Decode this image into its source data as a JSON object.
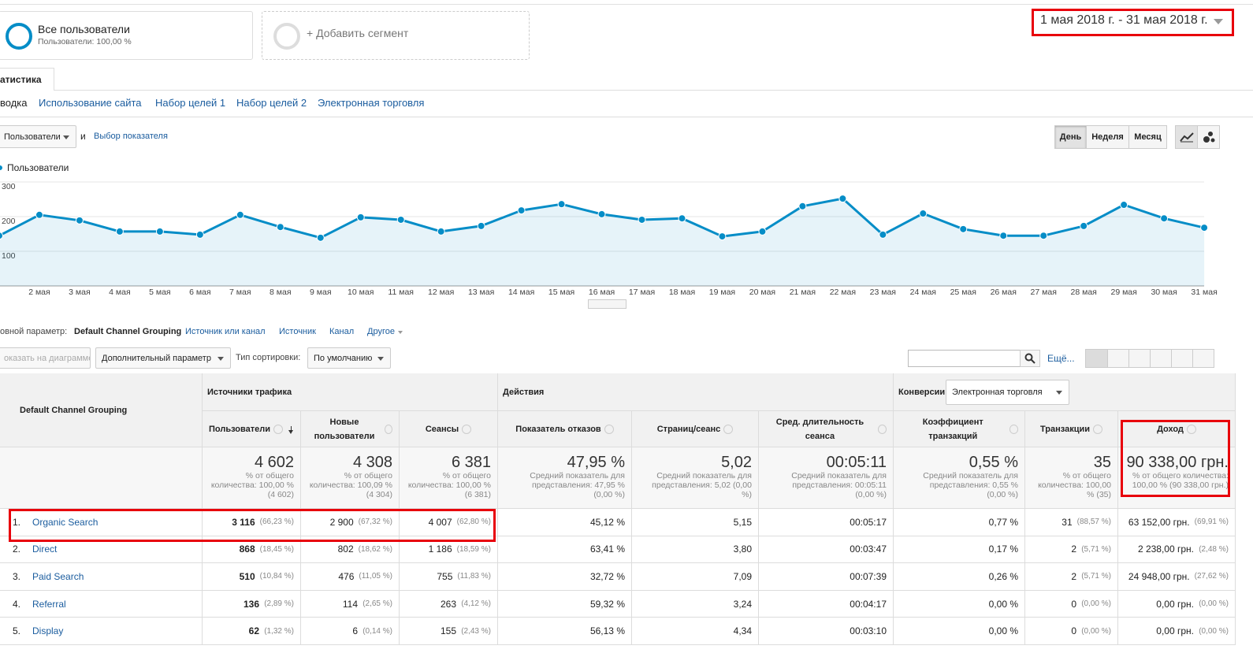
{
  "header": {
    "segment_name": "Все пользователи",
    "segment_note": "Пользователи: 100,00 %",
    "add_segment": "+ Добавить сегмент",
    "date_range": "1 мая 2018 г. - 31 мая 2018 г."
  },
  "tab": "атистика",
  "subtabs": [
    "водка",
    "Использование сайта",
    "Набор целей 1",
    "Набор целей 2",
    "Электронная торговля"
  ],
  "controls": {
    "metric": "Пользователи",
    "and": "и",
    "pick_metric": "Выбор показателя",
    "periods": [
      "День",
      "Неделя",
      "Месяц"
    ]
  },
  "chart_data": {
    "type": "line",
    "categories": [
      null,
      "2 мая",
      "3 мая",
      "4 мая",
      "5 мая",
      "6 мая",
      "7 мая",
      "8 мая",
      "9 мая",
      "10 мая",
      "11 мая",
      "12 мая",
      "13 мая",
      "14 мая",
      "15 мая",
      "16 мая",
      "17 мая",
      "18 мая",
      "19 мая",
      "20 мая",
      "21 мая",
      "22 мая",
      "23 мая",
      "24 мая",
      "25 мая",
      "26 мая",
      "27 мая",
      "28 мая",
      "29 мая",
      "30 мая",
      "31 мая"
    ],
    "series": [
      {
        "name": "Пользователи",
        "color": "#058dc7",
        "values": [
          145,
          205,
          189,
          157,
          157,
          148,
          205,
          170,
          139,
          198,
          191,
          157,
          173,
          218,
          236,
          207,
          191,
          195,
          143,
          157,
          230,
          252,
          148,
          209,
          164,
          145,
          145,
          173,
          234,
          195,
          168
        ]
      }
    ],
    "ylim": [
      0,
      300
    ],
    "yticks": [
      100,
      200,
      300
    ],
    "grid": true
  },
  "dimensions": {
    "label": "овной параметр:",
    "current": "Default Channel Grouping",
    "links": [
      "Источник или канал",
      "Источник",
      "Канал",
      "Другое"
    ]
  },
  "toolbar": {
    "plot": "оказать на диаграмме",
    "secondary": "Дополнительный параметр",
    "sort_label": "Тип сортировки:",
    "sort_value": "По умолчанию",
    "more": "Ещё..."
  },
  "table": {
    "dimension": "Default Channel Grouping",
    "groups": [
      "Источники трафика",
      "Действия",
      "Конверсии"
    ],
    "conversion_select": "Электронная торговля",
    "columns": [
      "Пользователи",
      "Новые пользователи",
      "Сеансы",
      "Показатель отказов",
      "Страниц/сеанс",
      "Сред. длительность сеанса",
      "Коэффициент транзакций",
      "Транзакции",
      "Доход"
    ],
    "totals": [
      {
        "value": "4 602",
        "note": "% от общего количества: 100,00 % (4 602)"
      },
      {
        "value": "4 308",
        "note": "% от общего количества: 100,09 % (4 304)"
      },
      {
        "value": "6 381",
        "note": "% от общего количества: 100,00 % (6 381)"
      },
      {
        "value": "47,95 %",
        "note": "Средний показатель для представления: 47,95 % (0,00 %)"
      },
      {
        "value": "5,02",
        "note": "Средний показатель для представления: 5,02 (0,00 %)"
      },
      {
        "value": "00:05:11",
        "note": "Средний показатель для представления: 00:05:11 (0,00 %)"
      },
      {
        "value": "0,55 %",
        "note": "Средний показатель для представления: 0,55 % (0,00 %)"
      },
      {
        "value": "35",
        "note": "% от общего количества: 100,00 % (35)"
      },
      {
        "value": "90 338,00 грн.",
        "note": "% от общего количества: 100,00 % (90 338,00 грн.)"
      }
    ],
    "rows": [
      {
        "index": "1.",
        "name": "Organic Search",
        "cells": [
          [
            "3 116",
            "(66,23 %)"
          ],
          [
            "2 900",
            "(67,32 %)"
          ],
          [
            "4 007",
            "(62,80 %)"
          ],
          [
            "45,12 %"
          ],
          [
            "5,15"
          ],
          [
            "00:05:17"
          ],
          [
            "0,77 %"
          ],
          [
            "31",
            "(88,57 %)"
          ],
          [
            "63 152,00 грн.",
            "(69,91 %)"
          ]
        ]
      },
      {
        "index": "2.",
        "name": "Direct",
        "cells": [
          [
            "868",
            "(18,45 %)"
          ],
          [
            "802",
            "(18,62 %)"
          ],
          [
            "1 186",
            "(18,59 %)"
          ],
          [
            "63,41 %"
          ],
          [
            "3,80"
          ],
          [
            "00:03:47"
          ],
          [
            "0,17 %"
          ],
          [
            "2",
            "(5,71 %)"
          ],
          [
            "2 238,00 грн.",
            "(2,48 %)"
          ]
        ]
      },
      {
        "index": "3.",
        "name": "Paid Search",
        "cells": [
          [
            "510",
            "(10,84 %)"
          ],
          [
            "476",
            "(11,05 %)"
          ],
          [
            "755",
            "(11,83 %)"
          ],
          [
            "32,72 %"
          ],
          [
            "7,09"
          ],
          [
            "00:07:39"
          ],
          [
            "0,26 %"
          ],
          [
            "2",
            "(5,71 %)"
          ],
          [
            "24 948,00 грн.",
            "(27,62 %)"
          ]
        ]
      },
      {
        "index": "4.",
        "name": "Referral",
        "cells": [
          [
            "136",
            "(2,89 %)"
          ],
          [
            "114",
            "(2,65 %)"
          ],
          [
            "263",
            "(4,12 %)"
          ],
          [
            "59,32 %"
          ],
          [
            "3,24"
          ],
          [
            "00:04:17"
          ],
          [
            "0,00 %"
          ],
          [
            "0",
            "(0,00 %)"
          ],
          [
            "0,00 грн.",
            "(0,00 %)"
          ]
        ]
      },
      {
        "index": "5.",
        "name": "Display",
        "cells": [
          [
            "62",
            "(1,32 %)"
          ],
          [
            "6",
            "(0,14 %)"
          ],
          [
            "155",
            "(2,43 %)"
          ],
          [
            "56,13 %"
          ],
          [
            "4,34"
          ],
          [
            "00:03:10"
          ],
          [
            "0,00 %"
          ],
          [
            "0",
            "(0,00 %)"
          ],
          [
            "0,00 грн.",
            "(0,00 %)"
          ]
        ]
      }
    ]
  }
}
